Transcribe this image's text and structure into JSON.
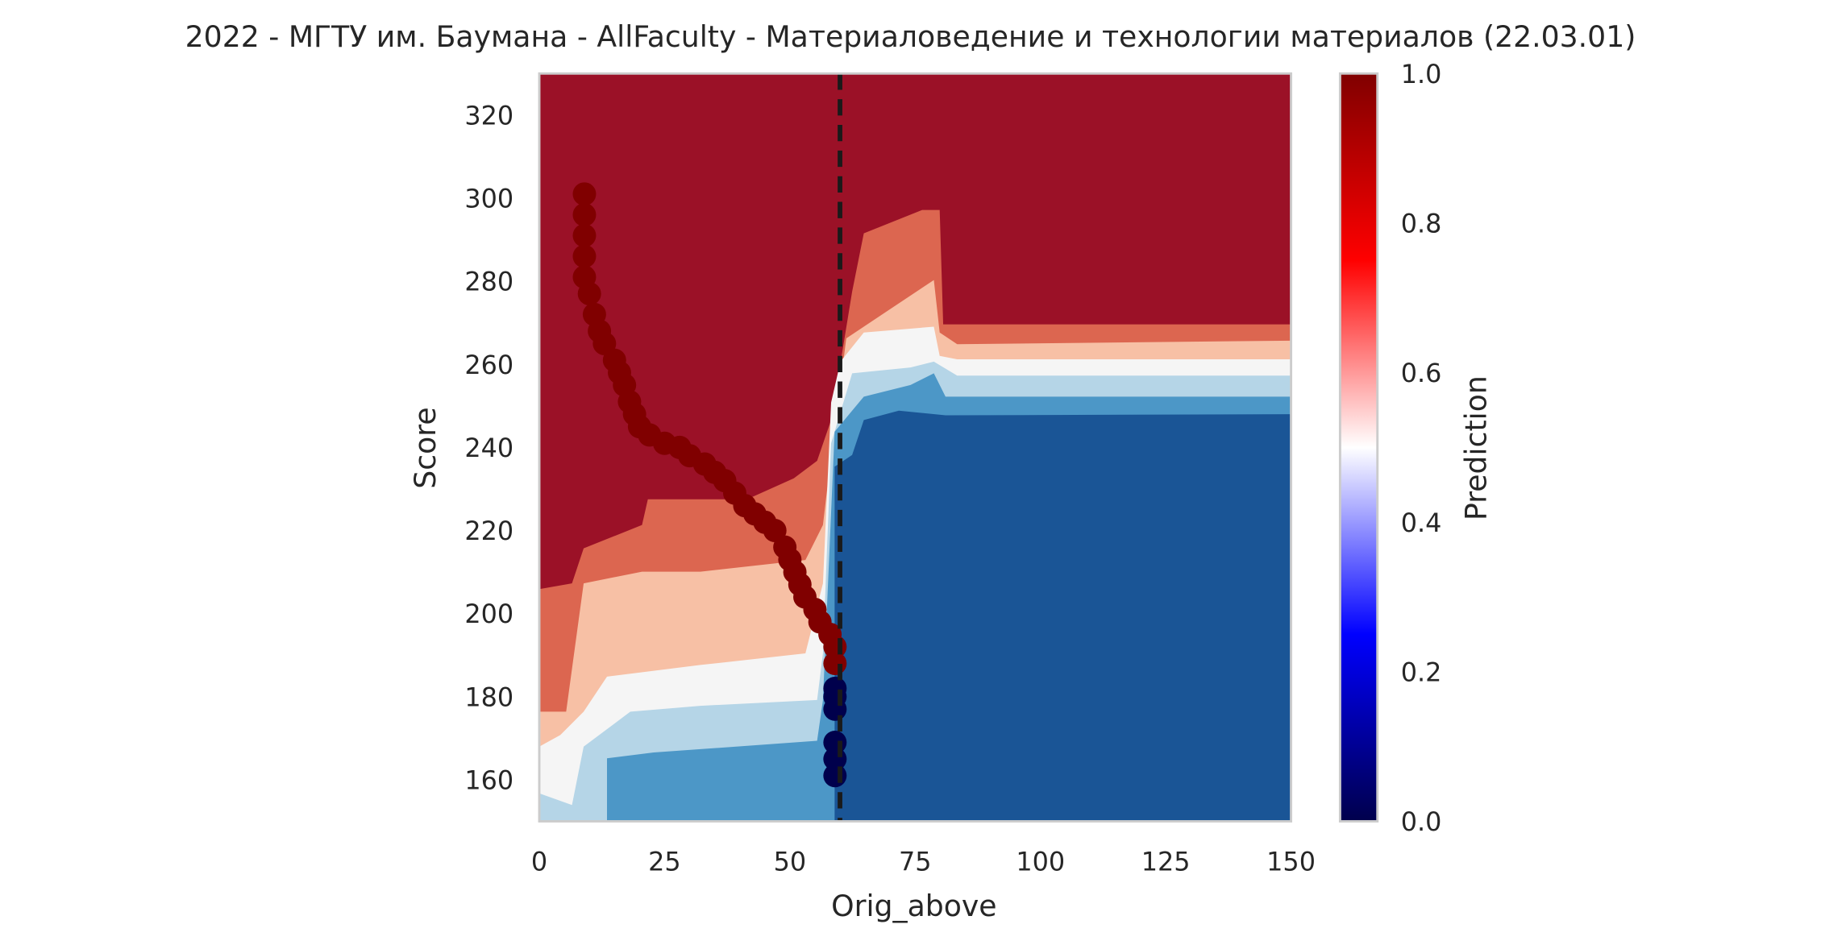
{
  "chart_data": {
    "type": "contour",
    "title": "2022 - МГТУ им. Баумана - AllFaculty - Материаловедение и технологии материалов (22.03.01)",
    "x_label": "Orig_above",
    "y_label": "Score",
    "xlim": [
      0,
      150
    ],
    "ylim": [
      150,
      330
    ],
    "xticks": [
      0,
      25,
      50,
      75,
      100,
      125,
      150
    ],
    "yticks": [
      160,
      180,
      200,
      220,
      240,
      260,
      280,
      300,
      320
    ],
    "vline": 60,
    "vline_color": "#1a1a1a",
    "points": {
      "x": [
        9,
        9,
        9,
        9,
        9,
        10,
        11,
        12,
        13,
        15,
        16,
        17,
        18,
        19,
        20,
        22,
        25,
        28,
        30,
        33,
        35,
        37,
        39,
        41,
        43,
        45,
        47,
        49,
        50,
        51,
        52,
        53,
        55,
        56,
        58,
        59,
        59,
        59,
        59,
        59,
        59,
        59,
        59
      ],
      "y": [
        301,
        296,
        291,
        286,
        281,
        277,
        272,
        268,
        265,
        261,
        258,
        255,
        251,
        248,
        245,
        243,
        241,
        240,
        238,
        236,
        234,
        232,
        229,
        226,
        224,
        222,
        220,
        216,
        213,
        210,
        207,
        204,
        201,
        198,
        195,
        192,
        188,
        182,
        180,
        177,
        169,
        165,
        161
      ],
      "prediction": [
        1,
        1,
        1,
        1,
        1,
        1,
        1,
        1,
        1,
        1,
        1,
        1,
        1,
        1,
        1,
        1,
        1,
        1,
        1,
        1,
        1,
        1,
        1,
        1,
        1,
        1,
        1,
        1,
        1,
        1,
        1,
        1,
        1,
        1,
        1,
        1,
        1,
        0,
        0,
        0,
        0,
        0,
        0
      ]
    },
    "colorbar": {
      "label": "Prediction",
      "lim": [
        0,
        1
      ],
      "ticks": [
        {
          "value": 0,
          "label": "0.0"
        },
        0.2,
        0.4,
        0.6,
        0.8,
        {
          "value": 1,
          "label": "1.0"
        }
      ],
      "colors": [
        "#00004c",
        "#0000ff",
        "#ffffff",
        "#ff0000",
        "#800000"
      ]
    }
  }
}
